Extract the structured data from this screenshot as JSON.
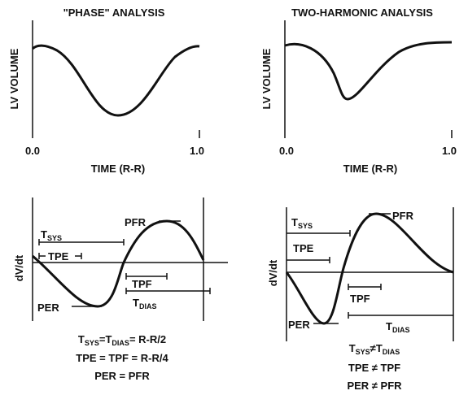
{
  "panels": [
    {
      "title": "\"PHASE\" ANALYSIS",
      "y_label": "LV VOLUME",
      "x_label": "TIME (R-R)",
      "x_start": "0.0",
      "x_end": "1.0"
    },
    {
      "title": "TWO-HARMONIC ANALYSIS",
      "y_label": "LV VOLUME",
      "x_label": "TIME (R-R)",
      "x_start": "0.0",
      "x_end": "1.0"
    }
  ],
  "derivative_panels": [
    {
      "y_label": "dV/dt",
      "pfr": "PFR",
      "per": "PER",
      "tpe": "TPE",
      "tpf": "TPF",
      "tsys": {
        "main": "T",
        "sub": "SYS"
      },
      "tdias": {
        "main": "T",
        "sub": "DIAS"
      },
      "equations": [
        [
          "T",
          "SYS",
          "=",
          "T",
          "DIAS",
          "= R-R/2"
        ],
        [
          "TPE = TPF = R-R/4"
        ],
        [
          "PER = PFR"
        ]
      ]
    },
    {
      "y_label": "dV/dt",
      "pfr": "PFR",
      "per": "PER",
      "tpe": "TPE",
      "tpf": "TPF",
      "tsys": {
        "main": "T",
        "sub": "SYS"
      },
      "tdias": {
        "main": "T",
        "sub": "DIAS"
      },
      "equations": [
        [
          "T",
          "SYS",
          "≠",
          "T",
          "DIAS"
        ],
        [
          "TPE ≠ TPF"
        ],
        [
          "PER ≠ PFR"
        ]
      ]
    }
  ]
}
